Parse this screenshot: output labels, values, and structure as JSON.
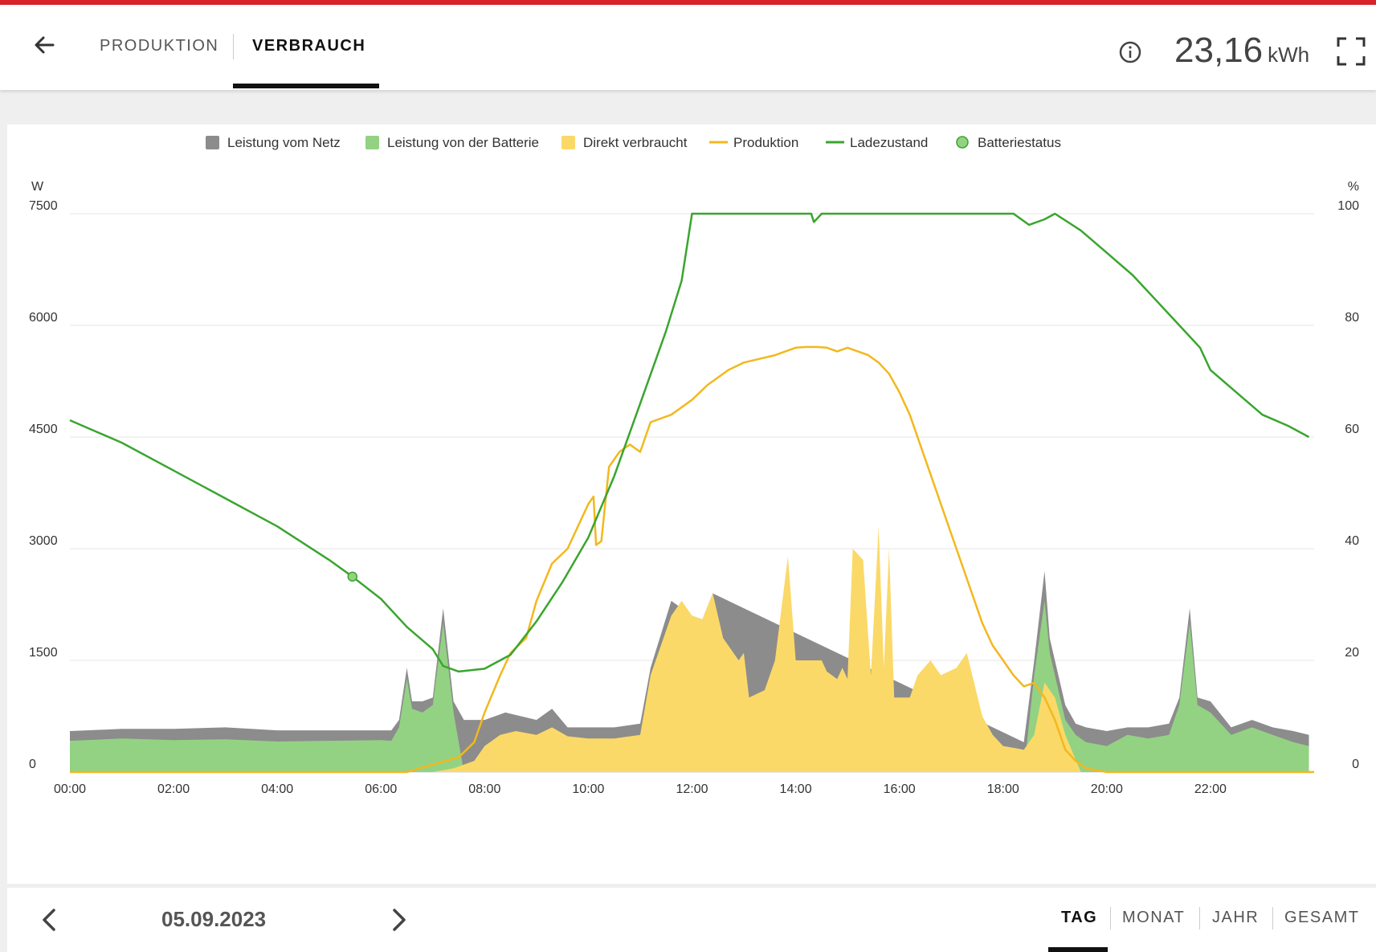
{
  "header": {
    "tabs": [
      {
        "label": "PRODUKTION",
        "active": false
      },
      {
        "label": "VERBRAUCH",
        "active": true
      }
    ],
    "energy_value": "23,16",
    "energy_unit": "kWh",
    "icons": [
      "back-arrow-icon",
      "info-icon",
      "fullscreen-icon"
    ]
  },
  "colors": {
    "grid": "#8c8c8c",
    "battery": "#93d283",
    "direct": "#fbd968",
    "production": "#f2b81e",
    "soc": "#3aa52f",
    "accent": "#d8232a"
  },
  "chart_data": {
    "type": "area",
    "legend_position": "top-center",
    "legend": [
      {
        "label": "Leistung vom Netz",
        "marker": "square",
        "color": "#8c8c8c"
      },
      {
        "label": "Leistung von der Batterie",
        "marker": "square",
        "color": "#93d283"
      },
      {
        "label": "Direkt verbraucht",
        "marker": "square",
        "color": "#fbd968"
      },
      {
        "label": "Produktion",
        "marker": "line",
        "color": "#f2b81e"
      },
      {
        "label": "Ladezustand",
        "marker": "line",
        "color": "#3aa52f"
      },
      {
        "label": "Batteriestatus",
        "marker": "circle",
        "color": "#93d283"
      }
    ],
    "left_axis": {
      "unit": "W",
      "ticks": [
        0,
        1500,
        3000,
        4500,
        6000,
        7500
      ],
      "tick_labels": [
        "0",
        "1500",
        "3000",
        "4500",
        "6000",
        "7500"
      ],
      "range": [
        0,
        7500
      ]
    },
    "right_axis": {
      "unit": "%",
      "ticks": [
        0,
        20,
        40,
        60,
        80,
        100
      ],
      "tick_labels": [
        "0",
        "20",
        "40",
        "60",
        "80",
        "100"
      ],
      "range": [
        0,
        100
      ]
    },
    "x_axis": {
      "range_hours": [
        0,
        24
      ],
      "ticks": [
        0,
        2,
        4,
        6,
        8,
        10,
        12,
        14,
        16,
        18,
        20,
        22
      ],
      "tick_labels": [
        "00:00",
        "02:00",
        "04:00",
        "06:00",
        "08:00",
        "10:00",
        "12:00",
        "14:00",
        "16:00",
        "18:00",
        "20:00",
        "22:00"
      ]
    },
    "grid": true,
    "series_direct": {
      "name": "Direkt verbraucht",
      "unit": "W",
      "points": [
        [
          0,
          0
        ],
        [
          6.2,
          0
        ],
        [
          7,
          0
        ],
        [
          7.4,
          50
        ],
        [
          7.8,
          150
        ],
        [
          8,
          350
        ],
        [
          8.3,
          500
        ],
        [
          8.6,
          550
        ],
        [
          9,
          500
        ],
        [
          9.3,
          600
        ],
        [
          9.6,
          480
        ],
        [
          10,
          450
        ],
        [
          10.5,
          450
        ],
        [
          11,
          500
        ],
        [
          11.2,
          1300
        ],
        [
          11.6,
          2100
        ],
        [
          11.8,
          2300
        ],
        [
          12,
          2100
        ],
        [
          12.2,
          2050
        ],
        [
          12.4,
          2400
        ],
        [
          12.6,
          1800
        ],
        [
          12.9,
          1500
        ],
        [
          13,
          1600
        ],
        [
          13.1,
          1000
        ],
        [
          13.4,
          1100
        ],
        [
          13.6,
          1500
        ],
        [
          13.85,
          2900
        ],
        [
          14,
          1500
        ],
        [
          14.3,
          1500
        ],
        [
          14.5,
          1500
        ],
        [
          14.6,
          1350
        ],
        [
          14.8,
          1250
        ],
        [
          14.9,
          1400
        ],
        [
          15,
          1250
        ],
        [
          15.1,
          3000
        ],
        [
          15.3,
          2850
        ],
        [
          15.45,
          1300
        ],
        [
          15.6,
          3300
        ],
        [
          15.7,
          1400
        ],
        [
          15.8,
          3000
        ],
        [
          15.9,
          1000
        ],
        [
          16.2,
          1000
        ],
        [
          16.35,
          1300
        ],
        [
          16.6,
          1500
        ],
        [
          16.8,
          1300
        ],
        [
          17.1,
          1400
        ],
        [
          17.3,
          1600
        ],
        [
          17.6,
          750
        ],
        [
          17.8,
          500
        ],
        [
          18,
          350
        ],
        [
          18.4,
          300
        ],
        [
          18.6,
          500
        ],
        [
          18.8,
          1200
        ],
        [
          19,
          1000
        ],
        [
          19.2,
          500
        ],
        [
          19.5,
          0
        ],
        [
          24,
          0
        ]
      ]
    },
    "series_battery": {
      "name": "Leistung von der Batterie",
      "unit": "W",
      "points": [
        [
          0,
          420
        ],
        [
          1,
          450
        ],
        [
          2,
          430
        ],
        [
          3,
          440
        ],
        [
          4,
          410
        ],
        [
          5,
          420
        ],
        [
          6,
          430
        ],
        [
          6.2,
          420
        ],
        [
          6.35,
          600
        ],
        [
          6.5,
          1250
        ],
        [
          6.6,
          850
        ],
        [
          6.8,
          800
        ],
        [
          7,
          900
        ],
        [
          7.2,
          2000
        ],
        [
          7.4,
          800
        ],
        [
          7.6,
          0
        ],
        [
          8,
          0
        ],
        [
          9,
          0
        ],
        [
          10,
          0
        ],
        [
          11,
          0
        ],
        [
          18.4,
          0
        ],
        [
          18.6,
          1300
        ],
        [
          18.8,
          2300
        ],
        [
          18.9,
          1600
        ],
        [
          19.2,
          700
        ],
        [
          19.4,
          500
        ],
        [
          19.6,
          400
        ],
        [
          20,
          350
        ],
        [
          20.4,
          500
        ],
        [
          20.8,
          450
        ],
        [
          21.2,
          500
        ],
        [
          21.4,
          900
        ],
        [
          21.6,
          2000
        ],
        [
          21.75,
          900
        ],
        [
          22,
          800
        ],
        [
          22.4,
          500
        ],
        [
          22.8,
          600
        ],
        [
          23.2,
          500
        ],
        [
          23.6,
          400
        ],
        [
          23.9,
          350
        ]
      ]
    },
    "series_grid": {
      "name": "Leistung vom Netz",
      "unit": "W",
      "points": [
        [
          0,
          550
        ],
        [
          1,
          580
        ],
        [
          2,
          580
        ],
        [
          3,
          600
        ],
        [
          4,
          560
        ],
        [
          5,
          560
        ],
        [
          6,
          560
        ],
        [
          6.2,
          560
        ],
        [
          6.35,
          700
        ],
        [
          6.5,
          1400
        ],
        [
          6.6,
          950
        ],
        [
          6.8,
          950
        ],
        [
          7,
          1000
        ],
        [
          7.2,
          2200
        ],
        [
          7.4,
          950
        ],
        [
          7.6,
          700
        ],
        [
          8,
          700
        ],
        [
          8.4,
          800
        ],
        [
          9,
          700
        ],
        [
          9.3,
          850
        ],
        [
          9.6,
          600
        ],
        [
          10,
          600
        ],
        [
          10.5,
          600
        ],
        [
          11,
          650
        ],
        [
          11.2,
          1400
        ],
        [
          11.6,
          2300
        ],
        [
          11.8,
          2200
        ],
        [
          12,
          2100
        ],
        [
          12.2,
          2050
        ],
        [
          12.4,
          2400
        ],
        [
          18.4,
          400
        ],
        [
          18.6,
          1500
        ],
        [
          18.8,
          2700
        ],
        [
          18.9,
          1800
        ],
        [
          19.2,
          900
        ],
        [
          19.4,
          650
        ],
        [
          19.6,
          600
        ],
        [
          20,
          550
        ],
        [
          20.4,
          600
        ],
        [
          20.8,
          600
        ],
        [
          21.2,
          650
        ],
        [
          21.4,
          1000
        ],
        [
          21.6,
          2200
        ],
        [
          21.75,
          1000
        ],
        [
          22,
          950
        ],
        [
          22.4,
          600
        ],
        [
          22.8,
          700
        ],
        [
          23.2,
          600
        ],
        [
          23.6,
          550
        ],
        [
          23.9,
          500
        ]
      ]
    },
    "series_production": {
      "name": "Produktion",
      "unit": "W",
      "points": [
        [
          0,
          0
        ],
        [
          6.5,
          0
        ],
        [
          7,
          100
        ],
        [
          7.5,
          200
        ],
        [
          7.8,
          400
        ],
        [
          8,
          800
        ],
        [
          8.3,
          1300
        ],
        [
          8.5,
          1600
        ],
        [
          8.8,
          1800
        ],
        [
          9,
          2300
        ],
        [
          9.3,
          2800
        ],
        [
          9.6,
          3000
        ],
        [
          9.8,
          3300
        ],
        [
          10,
          3600
        ],
        [
          10.1,
          3700
        ],
        [
          10.15,
          3050
        ],
        [
          10.25,
          3100
        ],
        [
          10.4,
          4100
        ],
        [
          10.6,
          4300
        ],
        [
          10.8,
          4400
        ],
        [
          11,
          4300
        ],
        [
          11.2,
          4700
        ],
        [
          11.6,
          4800
        ],
        [
          12,
          5000
        ],
        [
          12.3,
          5200
        ],
        [
          12.5,
          5300
        ],
        [
          12.7,
          5400
        ],
        [
          13,
          5500
        ],
        [
          13.3,
          5550
        ],
        [
          13.6,
          5600
        ],
        [
          13.8,
          5650
        ],
        [
          14,
          5700
        ],
        [
          14.2,
          5710
        ],
        [
          14.4,
          5710
        ],
        [
          14.6,
          5700
        ],
        [
          14.8,
          5650
        ],
        [
          15,
          5700
        ],
        [
          15.2,
          5650
        ],
        [
          15.4,
          5600
        ],
        [
          15.6,
          5500
        ],
        [
          15.8,
          5350
        ],
        [
          16,
          5100
        ],
        [
          16.2,
          4800
        ],
        [
          16.4,
          4400
        ],
        [
          16.6,
          4000
        ],
        [
          16.8,
          3600
        ],
        [
          17,
          3200
        ],
        [
          17.2,
          2800
        ],
        [
          17.4,
          2400
        ],
        [
          17.6,
          2000
        ],
        [
          17.8,
          1700
        ],
        [
          18,
          1500
        ],
        [
          18.2,
          1300
        ],
        [
          18.4,
          1150
        ],
        [
          18.6,
          1200
        ],
        [
          18.8,
          1000
        ],
        [
          19,
          700
        ],
        [
          19.2,
          300
        ],
        [
          19.4,
          150
        ],
        [
          19.6,
          50
        ],
        [
          20,
          0
        ],
        [
          24,
          0
        ]
      ]
    },
    "series_soc": {
      "name": "Ladezustand",
      "unit": "%",
      "points": [
        [
          0,
          63
        ],
        [
          0.5,
          61
        ],
        [
          1,
          59
        ],
        [
          2,
          54
        ],
        [
          3,
          49
        ],
        [
          4,
          44
        ],
        [
          5,
          38
        ],
        [
          5.45,
          35
        ],
        [
          6,
          31
        ],
        [
          6.5,
          26
        ],
        [
          7,
          22
        ],
        [
          7.2,
          19
        ],
        [
          7.5,
          18
        ],
        [
          8,
          18.5
        ],
        [
          8.5,
          21
        ],
        [
          9,
          27
        ],
        [
          9.5,
          34
        ],
        [
          10,
          42
        ],
        [
          10.5,
          53
        ],
        [
          11,
          66
        ],
        [
          11.5,
          79
        ],
        [
          11.8,
          88
        ],
        [
          12,
          100
        ],
        [
          14.3,
          100
        ],
        [
          14.35,
          98.5
        ],
        [
          14.5,
          100
        ],
        [
          18.2,
          100
        ],
        [
          18.5,
          98
        ],
        [
          18.8,
          99
        ],
        [
          19,
          100
        ],
        [
          19.5,
          97
        ],
        [
          20,
          93
        ],
        [
          20.5,
          89
        ],
        [
          21,
          84
        ],
        [
          21.5,
          79
        ],
        [
          21.8,
          76
        ],
        [
          22,
          72
        ],
        [
          22.5,
          68
        ],
        [
          23,
          64
        ],
        [
          23.5,
          62
        ],
        [
          23.9,
          60
        ]
      ]
    },
    "battery_status_marker": {
      "hour": 5.45,
      "value_pct": 35
    }
  },
  "footer": {
    "date": "05.09.2023",
    "periods": [
      {
        "label": "TAG",
        "active": true
      },
      {
        "label": "MONAT",
        "active": false
      },
      {
        "label": "JAHR",
        "active": false
      },
      {
        "label": "GESAMT",
        "active": false
      }
    ]
  }
}
